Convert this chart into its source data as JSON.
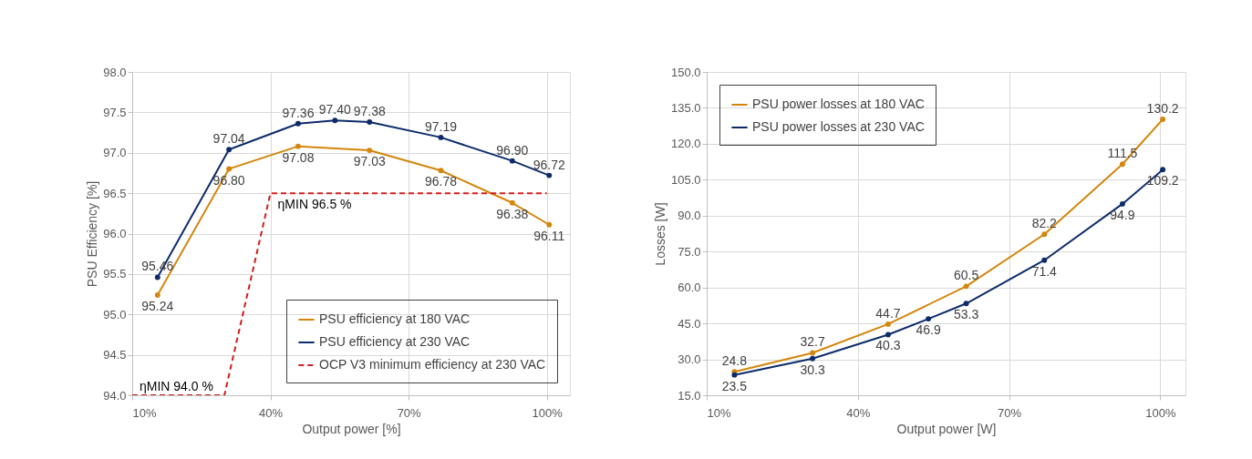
{
  "chart_data": [
    {
      "type": "line",
      "xlabel": "Output power [%]",
      "ylabel": "PSU Efficiency [%]",
      "xlim": [
        10,
        105
      ],
      "xticks": [
        {
          "value": 10,
          "label": "10%"
        },
        {
          "value": 40,
          "label": "40%"
        },
        {
          "value": 70,
          "label": "70%"
        },
        {
          "value": 100,
          "label": "100%"
        }
      ],
      "ylim": [
        94,
        98
      ],
      "yticks": [
        {
          "value": 94,
          "label": "94.0"
        },
        {
          "value": 94.5,
          "label": "94.5"
        },
        {
          "value": 95,
          "label": "95.0"
        },
        {
          "value": 95.5,
          "label": "95.5"
        },
        {
          "value": 96,
          "label": "96.0"
        },
        {
          "value": 96.5,
          "label": "96.5"
        },
        {
          "value": 97,
          "label": "97.0"
        },
        {
          "value": 97.5,
          "label": "97.5"
        },
        {
          "value": 98,
          "label": "98.0"
        }
      ],
      "grid": true,
      "legend": "bottom right",
      "marker": "circle",
      "line_style": "solid",
      "series": [
        {
          "name": "PSU efficiency at 180 VAC",
          "color": "#d4860b",
          "x": [
            15.5,
            31,
            46,
            61.5,
            77,
            92.5,
            100.5
          ],
          "values": [
            95.24,
            96.8,
            97.08,
            97.03,
            96.78,
            96.38,
            96.11
          ],
          "value_labels": [
            "95.24",
            "96.80",
            "97.08",
            "97.03",
            "96.78",
            "96.38",
            "96.11"
          ]
        },
        {
          "name": "PSU efficiency at 230 VAC",
          "color": "#0d2b6b",
          "x": [
            15.5,
            31,
            46,
            54,
            61.5,
            77,
            92.5,
            100.5
          ],
          "values": [
            95.46,
            97.04,
            97.36,
            97.4,
            97.38,
            97.19,
            96.9,
            96.72
          ],
          "value_labels": [
            "95.46",
            "97.04",
            "97.36",
            "97.40",
            "97.38",
            "97.19",
            "96.90",
            "96.72"
          ]
        },
        {
          "name": "OCP V3 minimum efficiency at 230 VAC",
          "color": "#d11f1f",
          "type": "line",
          "line_style": "dashed",
          "marker": "none",
          "x": [
            10,
            30,
            40,
            100
          ],
          "values": [
            94.0,
            94.0,
            96.5,
            96.5
          ]
        }
      ],
      "annotations": [
        {
          "text": "ηMIN 94.0 %",
          "x": 10,
          "y": 94.0
        },
        {
          "text": "ηMIN 96.5 %",
          "x": 40,
          "y": 96.5
        }
      ]
    },
    {
      "type": "line",
      "xlabel": "Output power [W]",
      "ylabel": "Losses [W]",
      "xlim": [
        10,
        105
      ],
      "xticks": [
        {
          "value": 10,
          "label": "10%"
        },
        {
          "value": 40,
          "label": "40%"
        },
        {
          "value": 70,
          "label": "70%"
        },
        {
          "value": 100,
          "label": "100%"
        }
      ],
      "ylim": [
        15,
        150
      ],
      "yticks": [
        {
          "value": 15,
          "label": "15.0"
        },
        {
          "value": 30,
          "label": "30.0"
        },
        {
          "value": 45,
          "label": "45.0"
        },
        {
          "value": 60,
          "label": "60.0"
        },
        {
          "value": 75,
          "label": "75.0"
        },
        {
          "value": 90,
          "label": "90.0"
        },
        {
          "value": 105,
          "label": "105.0"
        },
        {
          "value": 120,
          "label": "120.0"
        },
        {
          "value": 135,
          "label": "135.0"
        },
        {
          "value": 150,
          "label": "150.0"
        }
      ],
      "grid": true,
      "legend": "top left",
      "marker": "circle",
      "line_style": "solid",
      "series": [
        {
          "name": "PSU power losses at 180 VAC",
          "color": "#d4860b",
          "x": [
            15.5,
            31,
            46,
            61.5,
            77,
            92.5,
            100.5
          ],
          "values": [
            24.8,
            32.7,
            44.7,
            60.5,
            82.2,
            111.5,
            130.2
          ],
          "value_labels": [
            "24.8",
            "32.7",
            "44.7",
            "60.5",
            "82.2",
            "111.5",
            "130.2"
          ]
        },
        {
          "name": "PSU power losses at 230 VAC",
          "color": "#0d2b6b",
          "x": [
            15.5,
            31,
            46,
            54,
            61.5,
            77,
            92.5,
            100.5
          ],
          "values": [
            23.5,
            30.3,
            40.3,
            46.9,
            53.3,
            71.4,
            94.9,
            109.2
          ],
          "value_labels": [
            "23.5",
            "30.3",
            "40.3",
            "46.9",
            "53.3",
            "71.4",
            "94.9",
            "109.2"
          ]
        }
      ]
    }
  ]
}
